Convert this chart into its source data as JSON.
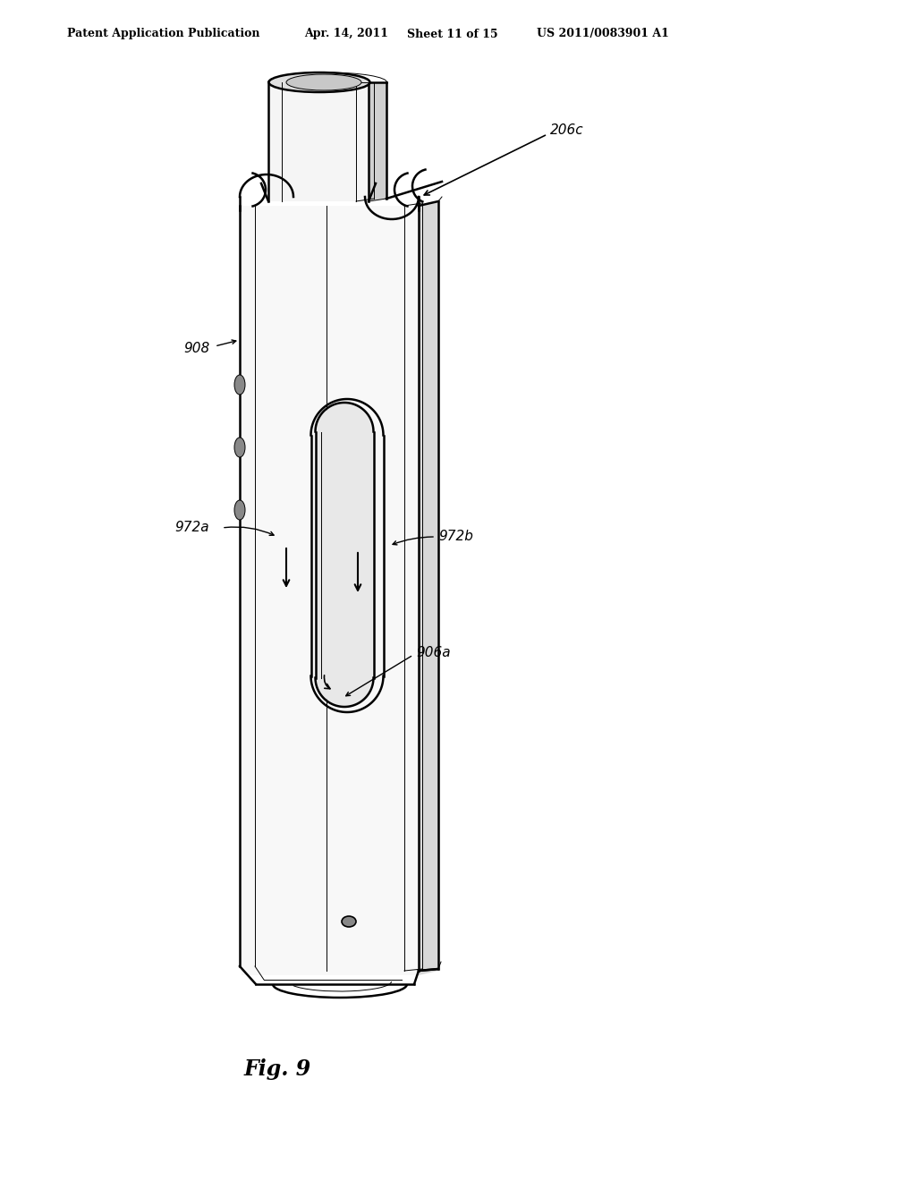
{
  "bg_color": "#ffffff",
  "header_text": "Patent Application Publication",
  "header_date": "Apr. 14, 2011",
  "header_sheet": "Sheet 11 of 15",
  "header_patent": "US 2011/0083901 A1",
  "fig_label": "Fig. 9",
  "label_206c": "206c",
  "label_908": "908",
  "label_972a": "972a",
  "label_972b": "972b",
  "label_906a": "906a",
  "line_color": "#000000",
  "lw_thick": 1.8,
  "lw_med": 1.2,
  "lw_thin": 0.7
}
